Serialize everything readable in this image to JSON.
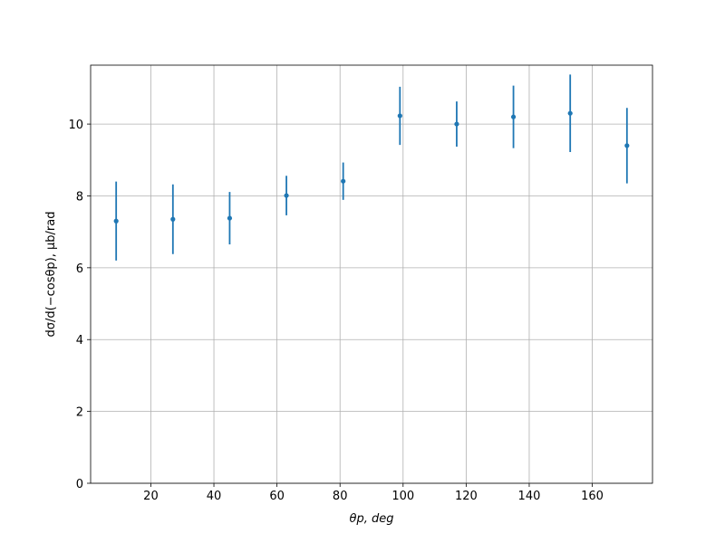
{
  "chart_data": {
    "type": "errorbar",
    "xlabel": "θp, deg",
    "ylabel": "dσ/d(−cosθp), μb/rad",
    "x": [
      9,
      27,
      45,
      63,
      81,
      99,
      117,
      135,
      153,
      171
    ],
    "series": [
      {
        "color": "#1f77b4",
        "values": [
          7.3,
          7.35,
          7.38,
          8.01,
          8.41,
          10.23,
          10.0,
          10.2,
          10.3,
          9.4
        ],
        "errors": [
          1.1,
          0.97,
          0.73,
          0.55,
          0.52,
          0.81,
          0.63,
          0.87,
          1.08,
          1.05
        ]
      }
    ],
    "xlim": [
      0.9,
      179.1
    ],
    "ylim": [
      0,
      11.64
    ],
    "xticks": [
      20,
      40,
      60,
      80,
      100,
      120,
      140,
      160
    ],
    "yticks": [
      0,
      2,
      4,
      6,
      8,
      10
    ],
    "grid": true
  }
}
